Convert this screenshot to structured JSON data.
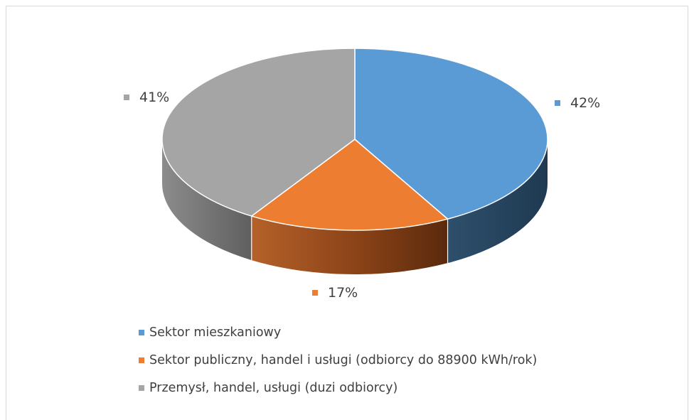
{
  "chart_data": {
    "type": "pie",
    "style": "3d",
    "title": "",
    "categories": [
      "Sektor mieszkaniowy",
      "Sektor publiczny, handel i usługi (odbiorcy do 88900 kWh/rok)",
      "Przemysł, handel, usługi (duzi odbiorcy)"
    ],
    "values": [
      42,
      17,
      41
    ],
    "labels": [
      "42%",
      "17%",
      "41%"
    ],
    "colors": [
      "#5b9bd5",
      "#ed7d31",
      "#a5a5a5"
    ],
    "legend_position": "bottom"
  }
}
